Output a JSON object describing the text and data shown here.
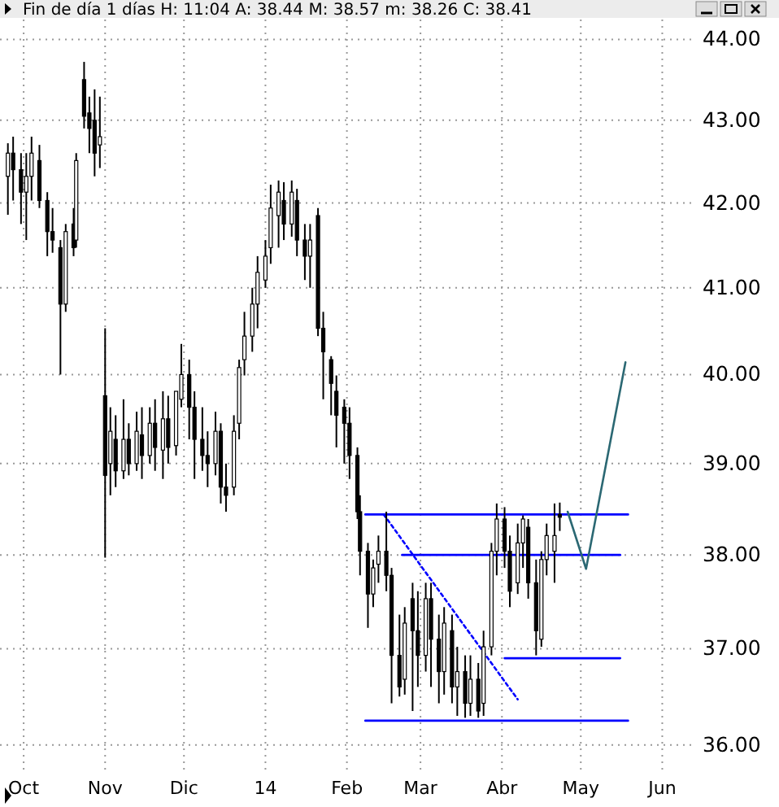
{
  "chart_data": {
    "type": "candlestick",
    "title": "Fin de día 1 días H: 11:04 A: 38.44 M: 38.57 m: 38.26 C: 38.41",
    "log": true,
    "grid": true,
    "xlim": [
      "2013-09-22",
      "2014-06-12"
    ],
    "ylim": [
      35.7,
      44.25
    ],
    "xticks": [
      {
        "value": "2013-10-01",
        "label": "Oct"
      },
      {
        "value": "2013-11-01",
        "label": "Nov"
      },
      {
        "value": "2013-12-01",
        "label": "Dic"
      },
      {
        "value": "2014-01-01",
        "label": "14"
      },
      {
        "value": "2014-02-01",
        "label": "Feb"
      },
      {
        "value": "2014-03-01",
        "label": "Mar"
      },
      {
        "value": "2014-04-01",
        "label": "Abr"
      },
      {
        "value": "2014-05-01",
        "label": "May"
      },
      {
        "value": "2014-06-01",
        "label": "Jun"
      }
    ],
    "yticks": [
      {
        "value": 36,
        "label": "36.00"
      },
      {
        "value": 37,
        "label": "37.00"
      },
      {
        "value": 38,
        "label": "38.00"
      },
      {
        "value": 39,
        "label": "39.00"
      },
      {
        "value": 40,
        "label": "40.00"
      },
      {
        "value": 41,
        "label": "41.00"
      },
      {
        "value": 42,
        "label": "42.00"
      },
      {
        "value": 43,
        "label": "43.00"
      },
      {
        "value": 44,
        "label": "44.00"
      }
    ],
    "x": [
      "2013-09-25",
      "2013-09-27",
      "2013-09-30",
      "2013-10-02",
      "2013-10-04",
      "2013-10-07",
      "2013-10-10",
      "2013-10-12",
      "2013-10-15",
      "2013-10-17",
      "2013-10-20",
      "2013-10-21",
      "2013-10-24",
      "2013-10-26",
      "2013-10-28",
      "2013-10-30",
      "2013-11-01",
      "2013-11-03",
      "2013-11-05",
      "2013-11-08",
      "2013-11-10",
      "2013-11-13",
      "2013-11-15",
      "2013-11-18",
      "2013-11-20",
      "2013-11-23",
      "2013-11-25",
      "2013-11-28",
      "2013-11-30",
      "2013-12-03",
      "2013-12-05",
      "2013-12-08",
      "2013-12-10",
      "2013-12-13",
      "2013-12-15",
      "2013-12-17",
      "2013-12-20",
      "2013-12-22",
      "2013-12-24",
      "2013-12-27",
      "2013-12-29",
      "2014-01-01",
      "2014-01-03",
      "2014-01-06",
      "2014-01-08",
      "2014-01-11",
      "2014-01-13",
      "2014-01-16",
      "2014-01-18",
      "2014-01-21",
      "2014-01-23",
      "2014-01-26",
      "2014-01-28",
      "2014-01-31",
      "2014-02-02",
      "2014-02-05",
      "2014-02-06",
      "2014-02-09",
      "2014-02-11",
      "2014-02-13",
      "2014-02-16",
      "2014-02-18",
      "2014-02-21",
      "2014-02-23",
      "2014-02-26",
      "2014-02-28",
      "2014-03-03",
      "2014-03-05",
      "2014-03-08",
      "2014-03-10",
      "2014-03-13",
      "2014-03-15",
      "2014-03-18",
      "2014-03-20",
      "2014-03-23",
      "2014-03-25",
      "2014-03-28",
      "2014-03-30",
      "2014-04-02",
      "2014-04-04",
      "2014-04-07",
      "2014-04-09",
      "2014-04-11",
      "2014-04-14",
      "2014-04-16",
      "2014-04-18",
      "2014-04-21",
      "2014-04-23"
    ],
    "ohlc": [
      [
        42.32,
        42.72,
        41.86,
        42.6
      ],
      [
        42.6,
        42.8,
        42.03,
        42.4
      ],
      [
        42.4,
        42.6,
        41.75,
        42.13
      ],
      [
        42.13,
        42.6,
        41.56,
        42.32
      ],
      [
        42.32,
        42.8,
        42.03,
        42.6
      ],
      [
        42.51,
        42.7,
        41.94,
        42.03
      ],
      [
        42.03,
        42.13,
        41.37,
        41.66
      ],
      [
        41.66,
        41.94,
        41.41,
        41.56
      ],
      [
        41.47,
        41.56,
        40.0,
        40.81
      ],
      [
        40.81,
        41.75,
        40.72,
        41.66
      ],
      [
        41.75,
        41.94,
        41.37,
        41.47
      ],
      [
        41.56,
        42.6,
        41.47,
        42.51
      ],
      [
        43.5,
        43.72,
        42.9,
        43.05
      ],
      [
        43.09,
        43.29,
        42.6,
        42.9
      ],
      [
        43.0,
        43.38,
        42.32,
        42.6
      ],
      [
        42.7,
        43.29,
        42.42,
        42.8
      ],
      [
        39.76,
        40.53,
        37.97,
        38.87
      ],
      [
        39.0,
        39.63,
        38.65,
        39.36
      ],
      [
        39.27,
        39.54,
        38.74,
        38.92
      ],
      [
        38.92,
        39.72,
        38.83,
        39.27
      ],
      [
        39.27,
        39.45,
        38.87,
        39.0
      ],
      [
        39.0,
        39.58,
        38.92,
        39.36
      ],
      [
        39.32,
        39.63,
        38.83,
        39.09
      ],
      [
        39.09,
        39.63,
        39.0,
        39.45
      ],
      [
        39.45,
        39.72,
        38.92,
        39.18
      ],
      [
        39.15,
        39.81,
        38.83,
        39.5
      ],
      [
        39.5,
        39.76,
        39.0,
        39.18
      ],
      [
        39.2,
        39.81,
        39.09,
        39.81
      ],
      [
        39.72,
        40.35,
        39.63,
        40.0
      ],
      [
        40.0,
        40.17,
        39.27,
        39.63
      ],
      [
        39.63,
        39.81,
        38.83,
        39.27
      ],
      [
        39.27,
        39.63,
        38.92,
        39.09
      ],
      [
        39.09,
        39.36,
        38.74,
        39.0
      ],
      [
        39.0,
        39.58,
        38.87,
        39.36
      ],
      [
        39.36,
        39.45,
        38.56,
        38.74
      ],
      [
        38.74,
        39.0,
        38.47,
        38.65
      ],
      [
        38.74,
        39.54,
        38.65,
        39.36
      ],
      [
        39.45,
        40.17,
        39.27,
        40.08
      ],
      [
        40.17,
        40.72,
        39.99,
        40.44
      ],
      [
        40.44,
        41.0,
        40.26,
        40.81
      ],
      [
        40.81,
        41.37,
        40.53,
        41.18
      ],
      [
        41.09,
        41.56,
        41.0,
        41.37
      ],
      [
        41.47,
        42.22,
        41.28,
        41.94
      ],
      [
        41.85,
        42.27,
        41.47,
        42.13
      ],
      [
        42.03,
        42.25,
        41.56,
        41.75
      ],
      [
        41.75,
        42.27,
        41.6,
        42.13
      ],
      [
        42.03,
        42.17,
        41.37,
        41.56
      ],
      [
        41.56,
        41.75,
        41.09,
        41.37
      ],
      [
        41.37,
        41.75,
        41.0,
        41.56
      ],
      [
        41.85,
        41.94,
        40.44,
        40.53
      ],
      [
        40.53,
        40.72,
        39.72,
        40.26
      ],
      [
        40.17,
        40.21,
        39.54,
        39.9
      ],
      [
        39.81,
        39.99,
        39.18,
        39.54
      ],
      [
        39.63,
        39.72,
        39.0,
        39.45
      ],
      [
        39.45,
        39.63,
        38.83,
        39.09
      ],
      [
        39.09,
        39.18,
        38.39,
        38.47
      ],
      [
        38.47,
        38.65,
        37.78,
        38.04
      ],
      [
        38.04,
        38.13,
        37.22,
        37.58
      ],
      [
        37.58,
        37.95,
        37.44,
        37.86
      ],
      [
        37.9,
        38.21,
        37.7,
        38.04
      ],
      [
        38.04,
        38.47,
        37.61,
        37.78
      ],
      [
        37.78,
        37.86,
        36.43,
        36.93
      ],
      [
        36.93,
        37.36,
        36.5,
        36.6
      ],
      [
        36.68,
        37.44,
        36.52,
        37.27
      ],
      [
        37.53,
        37.7,
        36.35,
        37.19
      ],
      [
        37.19,
        37.61,
        36.6,
        36.93
      ],
      [
        36.93,
        37.7,
        36.76,
        37.53
      ],
      [
        37.53,
        37.7,
        36.6,
        37.1
      ],
      [
        37.1,
        37.36,
        36.43,
        36.76
      ],
      [
        36.76,
        37.44,
        36.52,
        37.27
      ],
      [
        37.19,
        37.36,
        36.43,
        36.6
      ],
      [
        36.6,
        37.02,
        36.3,
        36.76
      ],
      [
        36.76,
        36.93,
        36.28,
        36.43
      ],
      [
        36.43,
        36.93,
        36.3,
        36.68
      ],
      [
        36.68,
        36.85,
        36.28,
        36.35
      ],
      [
        36.43,
        37.19,
        36.3,
        37.02
      ],
      [
        37.02,
        38.13,
        36.93,
        38.04
      ],
      [
        38.04,
        38.56,
        37.78,
        38.39
      ],
      [
        38.39,
        38.52,
        37.86,
        38.04
      ],
      [
        38.04,
        38.21,
        37.44,
        37.61
      ],
      [
        37.7,
        38.34,
        37.58,
        38.13
      ],
      [
        38.13,
        38.43,
        37.86,
        38.39
      ],
      [
        38.3,
        38.39,
        37.53,
        37.7
      ],
      [
        37.7,
        37.95,
        36.93,
        37.19
      ],
      [
        37.1,
        38.04,
        37.02,
        37.95
      ],
      [
        37.95,
        38.34,
        37.78,
        38.21
      ],
      [
        38.04,
        38.56,
        37.7,
        38.21
      ],
      [
        38.44,
        38.57,
        38.26,
        38.41
      ]
    ],
    "series": [
      {
        "type": "line",
        "color": "#0000ff",
        "x": [
          "2014-02-08",
          "2014-05-19"
        ],
        "values": [
          38.44,
          38.44
        ]
      },
      {
        "type": "line",
        "color": "#0000ff",
        "x": [
          "2014-02-22",
          "2014-05-16"
        ],
        "values": [
          38.0,
          38.0
        ]
      },
      {
        "type": "line",
        "color": "#0000ff",
        "x": [
          "2014-04-02",
          "2014-05-16"
        ],
        "values": [
          36.9,
          36.9
        ]
      },
      {
        "type": "line",
        "color": "#0000ff",
        "x": [
          "2014-02-08",
          "2014-05-19"
        ],
        "values": [
          36.25,
          36.25
        ]
      },
      {
        "type": "line",
        "color": "#0000ff",
        "line_style": "dotted",
        "x": [
          "2014-02-15",
          "2014-04-07"
        ],
        "values": [
          38.44,
          36.47
        ]
      },
      {
        "type": "line",
        "color": "#2b6873",
        "x": [
          "2014-04-26",
          "2014-05-03",
          "2014-05-18"
        ],
        "values": [
          38.47,
          37.85,
          40.14
        ]
      }
    ]
  }
}
